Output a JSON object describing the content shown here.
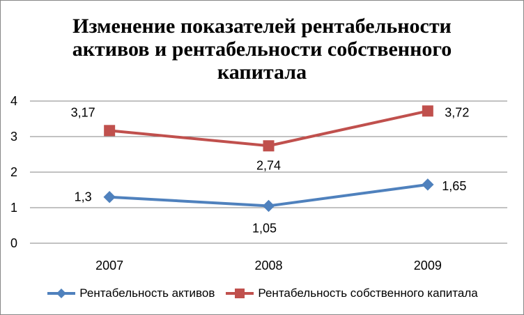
{
  "chart_data": {
    "type": "line",
    "title": "Изменение показателей рентабельности активов и рентабельности собственного капитала",
    "categories": [
      "2007",
      "2008",
      "2009"
    ],
    "ylim": [
      0,
      4
    ],
    "yticks": [
      "0",
      "1",
      "2",
      "3",
      "4"
    ],
    "grid": true,
    "legend_position": "bottom",
    "series": [
      {
        "name": "Рентабельность активов",
        "values": [
          1.3,
          1.05,
          1.65
        ],
        "labels": [
          "1,3",
          "1,05",
          "1,65"
        ],
        "color": "#4F81BD",
        "marker": "diamond"
      },
      {
        "name": "Рентабельность собственного капитала",
        "values": [
          3.17,
          2.74,
          3.72
        ],
        "labels": [
          "3,17",
          "2,74",
          "3,72"
        ],
        "color": "#C0504D",
        "marker": "square"
      }
    ]
  }
}
